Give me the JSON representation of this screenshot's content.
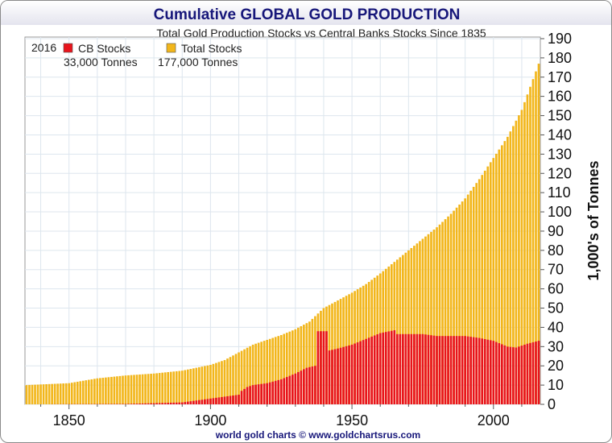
{
  "chart_data": {
    "type": "bar",
    "title": "Cumulative GLOBAL GOLD PRODUCTION",
    "subtitle": "Total Gold Production Stocks vs Central Banks Stocks Since 1835",
    "ylabel": "1,000's of Tonnes",
    "xlabel": "",
    "footer": "world gold charts © www.goldchartsrus.com",
    "xlim": [
      1835,
      2016
    ],
    "ylim": [
      0,
      190
    ],
    "x_ticks": [
      1850,
      1900,
      1950,
      2000
    ],
    "y_ticks": [
      0,
      10,
      20,
      30,
      40,
      50,
      60,
      70,
      80,
      90,
      100,
      110,
      120,
      130,
      140,
      150,
      160,
      170,
      180,
      190
    ],
    "grid": true,
    "legend": {
      "position": "top-left",
      "year": "2016",
      "entries": [
        {
          "name": "CB Stocks",
          "value_label": "33,000 Tonnes",
          "color": "#e8141c"
        },
        {
          "name": "Total Stocks",
          "value_label": "177,000 Tonnes",
          "color": "#f2b61b"
        }
      ]
    },
    "series": [
      {
        "name": "Total Stocks",
        "color": "#f2b61b",
        "points": [
          [
            1835,
            10
          ],
          [
            1850,
            11
          ],
          [
            1860,
            13.5
          ],
          [
            1870,
            15
          ],
          [
            1880,
            16
          ],
          [
            1890,
            17.5
          ],
          [
            1900,
            20.5
          ],
          [
            1905,
            23
          ],
          [
            1910,
            27
          ],
          [
            1915,
            31
          ],
          [
            1920,
            33.5
          ],
          [
            1925,
            36
          ],
          [
            1930,
            39
          ],
          [
            1935,
            43
          ],
          [
            1940,
            50
          ],
          [
            1945,
            54
          ],
          [
            1950,
            58
          ],
          [
            1955,
            62.5
          ],
          [
            1960,
            68
          ],
          [
            1965,
            74
          ],
          [
            1970,
            80
          ],
          [
            1975,
            86
          ],
          [
            1980,
            92
          ],
          [
            1985,
            99
          ],
          [
            1990,
            107
          ],
          [
            1995,
            117
          ],
          [
            2000,
            128
          ],
          [
            2005,
            139
          ],
          [
            2010,
            153
          ],
          [
            2016,
            177
          ]
        ]
      },
      {
        "name": "CB Stocks",
        "color": "#e8141c",
        "points": [
          [
            1835,
            0
          ],
          [
            1870,
            0.2
          ],
          [
            1880,
            0.6
          ],
          [
            1890,
            1
          ],
          [
            1895,
            2
          ],
          [
            1900,
            3
          ],
          [
            1905,
            4
          ],
          [
            1910,
            5
          ],
          [
            1911,
            7
          ],
          [
            1913,
            9
          ],
          [
            1915,
            10
          ],
          [
            1920,
            11
          ],
          [
            1925,
            13
          ],
          [
            1930,
            16
          ],
          [
            1934,
            19
          ],
          [
            1937,
            20
          ],
          [
            1938,
            38
          ],
          [
            1941,
            38
          ],
          [
            1942,
            28
          ],
          [
            1945,
            29
          ],
          [
            1950,
            31
          ],
          [
            1955,
            34
          ],
          [
            1960,
            37
          ],
          [
            1965,
            38.5
          ],
          [
            1966,
            36.5
          ],
          [
            1975,
            36.5
          ],
          [
            1980,
            35.5
          ],
          [
            1990,
            35.5
          ],
          [
            1995,
            34.5
          ],
          [
            2000,
            33
          ],
          [
            2005,
            30
          ],
          [
            2008,
            29.5
          ],
          [
            2012,
            31.5
          ],
          [
            2016,
            33
          ]
        ]
      }
    ]
  }
}
